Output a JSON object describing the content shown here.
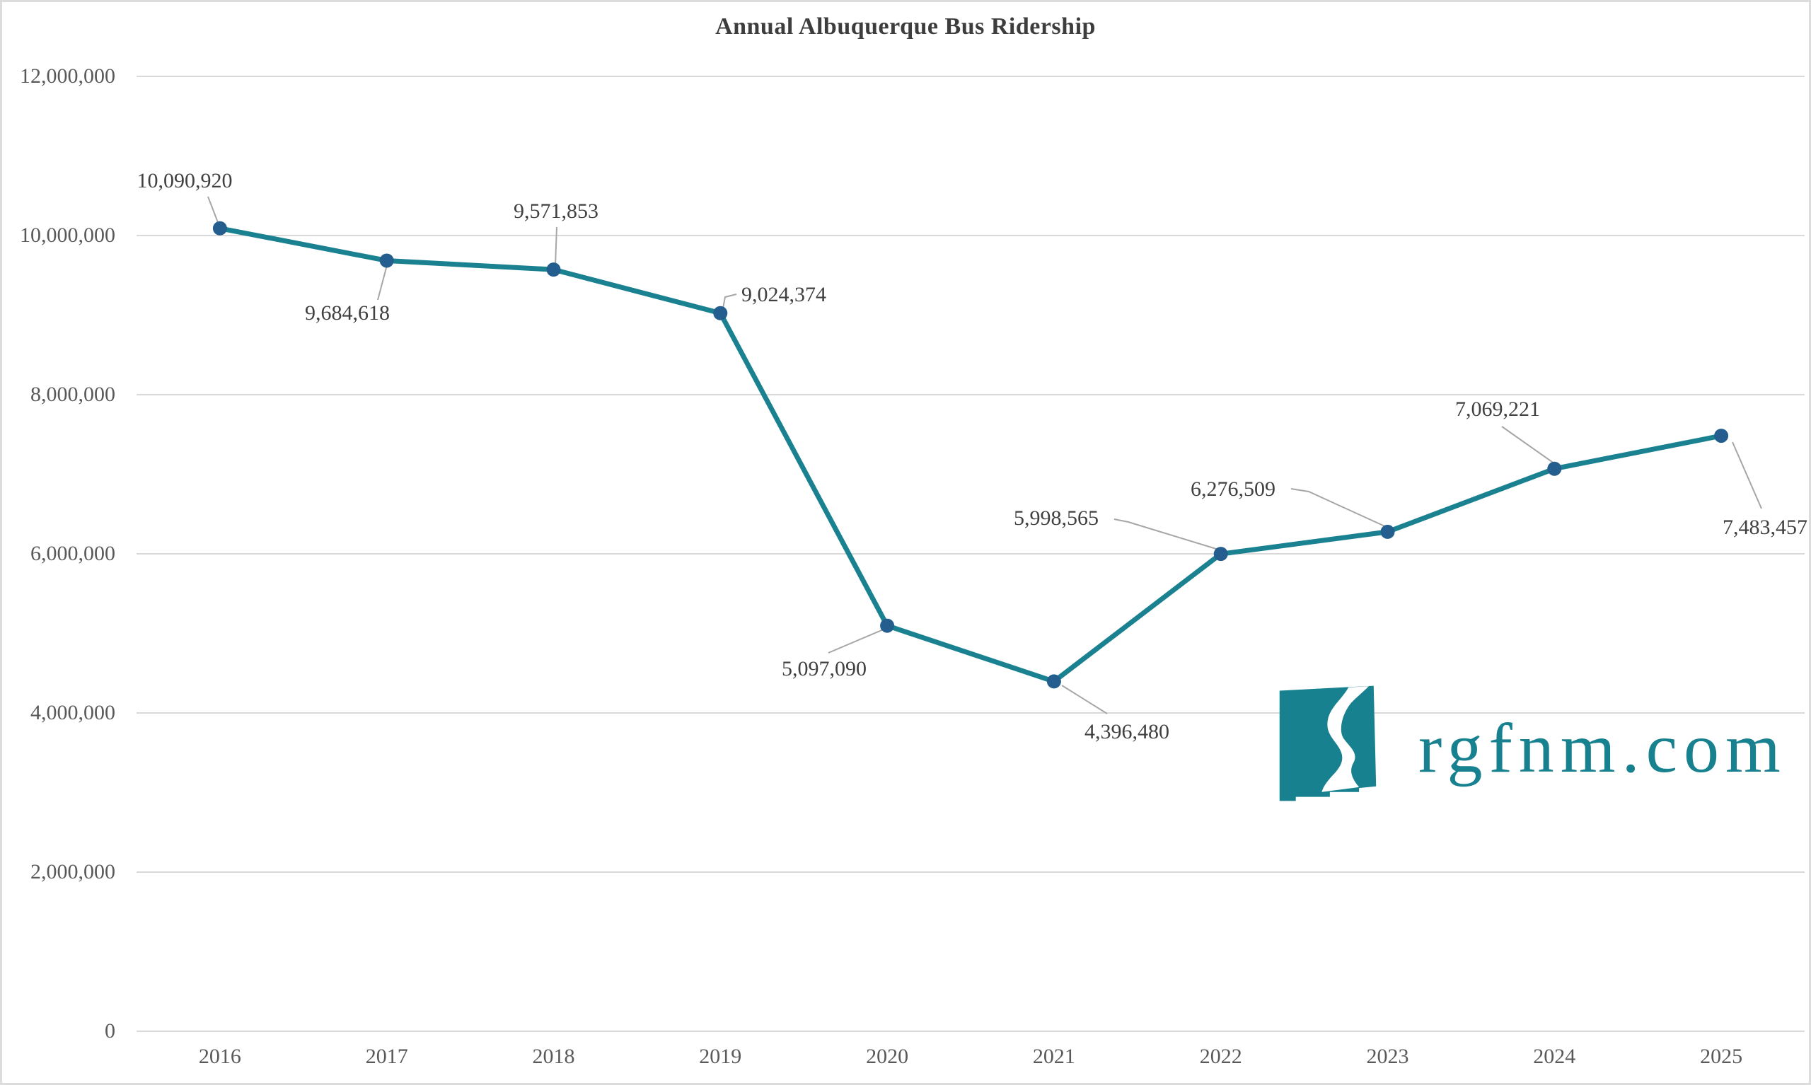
{
  "chart_data": {
    "type": "line",
    "title": "Annual Albuquerque Bus Ridership",
    "categories": [
      "2016",
      "2017",
      "2018",
      "2019",
      "2020",
      "2021",
      "2022",
      "2023",
      "2024",
      "2025"
    ],
    "series": [
      {
        "name": "Annual Albuquerque Bus Ridership",
        "values": [
          10090920,
          9684618,
          9571853,
          9024374,
          5097090,
          4396480,
          5998565,
          6276509,
          7069221,
          7483457
        ]
      }
    ],
    "value_labels": [
      "10,090,920",
      "9,684,618",
      "9,571,853",
      "9,024,374",
      "5,097,090",
      "4,396,480",
      "5,998,565",
      "6,276,509",
      "7,069,221",
      "7,483,457"
    ],
    "xlabel": "",
    "ylabel": "",
    "ylim": [
      0,
      12000000
    ],
    "y_tick_interval": 2000000,
    "y_tick_labels": [
      "0",
      "2,000,000",
      "4,000,000",
      "6,000,000",
      "8,000,000",
      "10,000,000",
      "12,000,000"
    ],
    "grid": "horizontal",
    "legend_position": "none"
  },
  "watermark": {
    "text": "rgfnm.com",
    "icon": "new-mexico-rio-grande-logo"
  },
  "colors": {
    "line": "#1a8191",
    "marker": "#235e8e",
    "grid": "#d9d9d9",
    "leader": "#a6a6a6",
    "title_text": "#3d3d3d",
    "tick_text": "#595959",
    "label_text": "#404040",
    "logo": "#17818f"
  }
}
